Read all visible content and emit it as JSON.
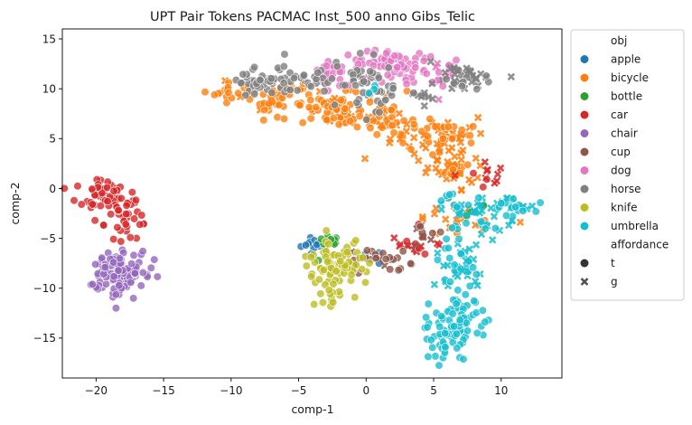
{
  "chart_data": {
    "type": "scatter",
    "title": "UPT Pair Tokens PACMAC Inst_500 anno Gibs_Telic",
    "xlabel": "comp-1",
    "ylabel": "comp-2",
    "xlim": [
      -22.5,
      14.5
    ],
    "ylim": [
      -19,
      16
    ],
    "xticks": [
      -20,
      -15,
      -10,
      -5,
      0,
      5,
      10
    ],
    "yticks": [
      -15,
      -10,
      -5,
      0,
      5,
      10,
      15
    ],
    "grid": false,
    "legend": {
      "placement": "outside-right",
      "hue_title": "obj",
      "style_title": "affordance",
      "styles": [
        {
          "name": "t",
          "marker": "circle"
        },
        {
          "name": "g",
          "marker": "x"
        }
      ]
    },
    "series": [
      {
        "name": "apple",
        "color": "#1f77b4",
        "clusters": [
          {
            "x": -4.0,
            "y": -5.5,
            "sx": 0.4,
            "sy": 0.6,
            "n": 12,
            "g": 0
          },
          {
            "x": 0.5,
            "y": -6.8,
            "sx": 0.4,
            "sy": 0.4,
            "n": 5,
            "g": 0
          }
        ]
      },
      {
        "name": "bicycle",
        "color": "#ff7f0e",
        "clusters": [
          {
            "x": -10,
            "y": 9.8,
            "sx": 1.2,
            "sy": 0.5,
            "n": 22,
            "g": 0.1
          },
          {
            "x": -6.5,
            "y": 8.8,
            "sx": 1.2,
            "sy": 0.8,
            "n": 45,
            "g": 0.1
          },
          {
            "x": -2.5,
            "y": 8.0,
            "sx": 1.4,
            "sy": 1.0,
            "n": 55,
            "g": 0.2
          },
          {
            "x": 1.5,
            "y": 7.0,
            "sx": 1.5,
            "sy": 1.0,
            "n": 55,
            "g": 0.3
          },
          {
            "x": 5.0,
            "y": 5.0,
            "sx": 1.5,
            "sy": 1.3,
            "n": 60,
            "g": 0.6
          },
          {
            "x": 6.5,
            "y": 1.5,
            "sx": 1.0,
            "sy": 1.2,
            "n": 35,
            "g": 0.7
          },
          {
            "x": 6.5,
            "y": -3.0,
            "sx": 1.5,
            "sy": 1.0,
            "n": 20,
            "g": 0.8
          }
        ]
      },
      {
        "name": "bottle",
        "color": "#2ca02c",
        "clusters": [
          {
            "x": -3.0,
            "y": -5.5,
            "sx": 0.5,
            "sy": 0.6,
            "n": 10,
            "g": 0
          },
          {
            "x": 8.0,
            "y": -2.0,
            "sx": 0.6,
            "sy": 0.5,
            "n": 6,
            "g": 0.5
          }
        ]
      },
      {
        "name": "car",
        "color": "#d62728",
        "clusters": [
          {
            "x": -19.5,
            "y": -0.8,
            "sx": 1.0,
            "sy": 0.8,
            "n": 55,
            "g": 0
          },
          {
            "x": -17.8,
            "y": -3.0,
            "sx": 0.8,
            "sy": 1.1,
            "n": 32,
            "g": 0
          },
          {
            "x": 9.0,
            "y": 2.0,
            "sx": 0.6,
            "sy": 0.8,
            "n": 12,
            "g": 0.9
          },
          {
            "x": 3.5,
            "y": -5.8,
            "sx": 1.5,
            "sy": 0.7,
            "n": 18,
            "g": 0.6
          }
        ]
      },
      {
        "name": "chair",
        "color": "#9467bd",
        "clusters": [
          {
            "x": -18.5,
            "y": -8.5,
            "sx": 1.1,
            "sy": 1.2,
            "n": 110,
            "g": 0
          }
        ]
      },
      {
        "name": "cup",
        "color": "#8c564b",
        "clusters": [
          {
            "x": 0.8,
            "y": -6.8,
            "sx": 1.2,
            "sy": 0.5,
            "n": 25,
            "g": 0.2
          },
          {
            "x": 4.5,
            "y": -4.8,
            "sx": 0.8,
            "sy": 0.8,
            "n": 10,
            "g": 0.6
          }
        ]
      },
      {
        "name": "dog",
        "color": "#e377c2",
        "clusters": [
          {
            "x": -2.5,
            "y": 11.5,
            "sx": 1.0,
            "sy": 0.6,
            "n": 25,
            "g": 0
          },
          {
            "x": 1.8,
            "y": 12.3,
            "sx": 1.4,
            "sy": 0.9,
            "n": 70,
            "g": 0
          },
          {
            "x": 5.5,
            "y": 11.5,
            "sx": 0.8,
            "sy": 0.8,
            "n": 18,
            "g": 0.2
          }
        ]
      },
      {
        "name": "horse",
        "color": "#7f7f7f",
        "clusters": [
          {
            "x": -7.5,
            "y": 10.8,
            "sx": 1.3,
            "sy": 0.6,
            "n": 45,
            "g": 0
          },
          {
            "x": -4.5,
            "y": 11.0,
            "sx": 1.0,
            "sy": 0.7,
            "n": 25,
            "g": 0
          },
          {
            "x": -0.5,
            "y": 11.2,
            "sx": 1.0,
            "sy": 0.9,
            "n": 30,
            "g": 0
          },
          {
            "x": 0.5,
            "y": 9.0,
            "sx": 0.9,
            "sy": 0.8,
            "n": 22,
            "g": 0
          },
          {
            "x": 7.5,
            "y": 11.0,
            "sx": 1.3,
            "sy": 0.7,
            "n": 40,
            "g": 0.7
          },
          {
            "x": 4.0,
            "y": 9.5,
            "sx": 0.6,
            "sy": 0.6,
            "n": 10,
            "g": 0.6
          }
        ]
      },
      {
        "name": "knife",
        "color": "#bcbd22",
        "clusters": [
          {
            "x": -2.2,
            "y": -7.8,
            "sx": 1.3,
            "sy": 1.3,
            "n": 80,
            "g": 0
          },
          {
            "x": -2.6,
            "y": -11.0,
            "sx": 0.4,
            "sy": 0.6,
            "n": 10,
            "g": 0
          }
        ]
      },
      {
        "name": "umbrella",
        "color": "#17becf",
        "clusters": [
          {
            "x": 7.0,
            "y": -13.0,
            "sx": 1.0,
            "sy": 1.6,
            "n": 70,
            "g": 0
          },
          {
            "x": 5.6,
            "y": -15.5,
            "sx": 0.5,
            "sy": 1.0,
            "n": 22,
            "g": 0
          },
          {
            "x": 7.0,
            "y": -7.5,
            "sx": 0.8,
            "sy": 1.5,
            "n": 45,
            "g": 0.4
          },
          {
            "x": 8.5,
            "y": -2.5,
            "sx": 1.6,
            "sy": 1.0,
            "n": 55,
            "g": 0.6
          },
          {
            "x": 11.5,
            "y": -1.5,
            "sx": 0.9,
            "sy": 0.5,
            "n": 15,
            "g": 0.5
          },
          {
            "x": 0.5,
            "y": 9.8,
            "sx": 0.4,
            "sy": 0.3,
            "n": 3,
            "g": 0
          }
        ]
      }
    ]
  }
}
